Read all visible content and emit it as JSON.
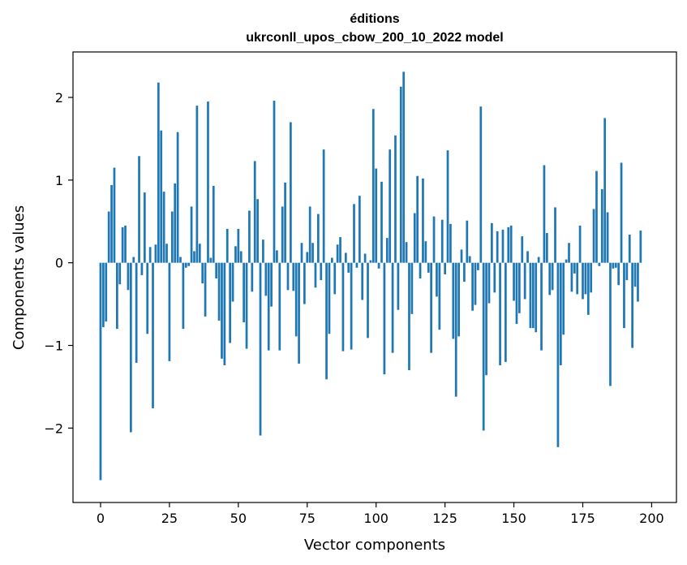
{
  "chart_data": {
    "type": "bar",
    "title_line1": "éditions",
    "title_line2": "ukrconll_upos_cbow_200_10_2022 model",
    "xlabel": "Vector components",
    "ylabel": "Components values",
    "xlim": [
      -10,
      209
    ],
    "ylim": [
      -2.9,
      2.55
    ],
    "xticks": [
      0,
      25,
      50,
      75,
      100,
      125,
      150,
      175,
      200
    ],
    "yticks": [
      -2,
      -1,
      0,
      1,
      2
    ],
    "ytick_labels": [
      "−2",
      "−1",
      "0",
      "1",
      "2"
    ],
    "xtick_labels": [
      "0",
      "25",
      "50",
      "75",
      "100",
      "125",
      "150",
      "175",
      "200"
    ],
    "bar_color": "#1f77b4",
    "grid": false,
    "values": [
      -2.63,
      -0.78,
      -0.71,
      0.62,
      0.94,
      1.15,
      -0.8,
      -0.26,
      0.43,
      0.45,
      -0.33,
      -2.05,
      0.07,
      -1.21,
      1.29,
      -0.15,
      0.85,
      -0.86,
      0.19,
      -1.76,
      0.22,
      2.18,
      1.6,
      0.86,
      0.23,
      -1.19,
      0.62,
      0.96,
      1.58,
      0.07,
      -0.8,
      -0.06,
      -0.04,
      0.68,
      0.14,
      1.9,
      0.23,
      -0.25,
      -0.65,
      1.95,
      0.06,
      0.93,
      -0.19,
      -0.7,
      -1.16,
      -1.24,
      0.41,
      -0.97,
      -0.47,
      0.2,
      0.41,
      0.14,
      -0.72,
      -1.04,
      0.63,
      -0.35,
      1.23,
      0.77,
      -2.09,
      0.28,
      -0.4,
      -1.06,
      -0.53,
      1.96,
      0.15,
      -1.06,
      0.68,
      0.97,
      -0.33,
      1.7,
      -0.34,
      -0.89,
      -1.22,
      0.24,
      -0.5,
      0.13,
      0.68,
      0.24,
      -0.3,
      0.59,
      -0.21,
      1.37,
      -1.41,
      -0.86,
      0.06,
      -0.38,
      0.22,
      0.31,
      -1.07,
      0.12,
      -0.12,
      -1.05,
      0.71,
      -0.06,
      0.81,
      -0.45,
      0.11,
      -0.91,
      0.03,
      1.86,
      1.14,
      -0.07,
      0.98,
      -1.35,
      0.3,
      1.37,
      -1.09,
      1.54,
      -0.57,
      2.13,
      2.31,
      0.25,
      -1.3,
      -0.62,
      0.6,
      1.05,
      -0.19,
      1.02,
      0.26,
      -0.12,
      -1.09,
      0.56,
      -0.41,
      -0.81,
      0.52,
      -0.14,
      1.36,
      0.47,
      -0.92,
      -1.62,
      -0.89,
      0.16,
      -0.23,
      0.51,
      0.08,
      -0.58,
      -0.51,
      -0.09,
      1.89,
      -2.03,
      -1.36,
      -0.49,
      0.48,
      -0.36,
      0.38,
      -1.24,
      0.4,
      -1.2,
      0.43,
      0.45,
      -0.46,
      -0.74,
      -0.61,
      0.32,
      -0.44,
      0.14,
      -0.79,
      -0.79,
      -0.84,
      0.07,
      -1.06,
      1.18,
      0.36,
      -0.39,
      -0.33,
      0.67,
      -2.23,
      -1.24,
      -0.87,
      0.04,
      0.24,
      -0.35,
      -0.13,
      -0.38,
      0.45,
      -0.44,
      -0.38,
      -0.63,
      -0.36,
      0.65,
      1.11,
      -0.04,
      0.89,
      1.75,
      0.61,
      -1.49,
      -0.07,
      -0.06,
      -0.27,
      1.21,
      -0.79,
      -0.21,
      0.34,
      -1.03,
      -0.29,
      -0.47,
      0.39
    ]
  }
}
